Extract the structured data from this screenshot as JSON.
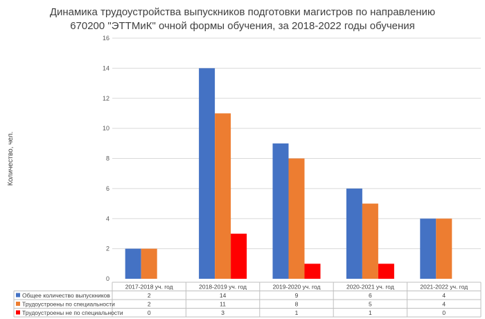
{
  "chart_data": {
    "type": "bar",
    "title_line1": "Динамика трудоустройства выпускников подготовки магистров по направлению",
    "title_line2": "670200 \"ЭТТМиК\" очной формы обучения, за 2018-2022 годы обучения",
    "xlabel": "",
    "ylabel": "Количество, чел.",
    "ylim": [
      0,
      16
    ],
    "yticks": [
      "0",
      "2",
      "4",
      "6",
      "8",
      "10",
      "12",
      "14",
      "16"
    ],
    "grid": true,
    "legend": "data-table",
    "categories": [
      "2017-2018 уч. год",
      "2018-2019 уч. год",
      "2019-2020 уч. год",
      "2020-2021 уч. год",
      "2021-2022 уч. год"
    ],
    "series": [
      {
        "name": "Общее количество выпускников",
        "color": "#4472c4",
        "values": [
          2,
          14,
          9,
          6,
          4
        ]
      },
      {
        "name": "Трудоустроены по специальности",
        "color": "#ed7d31",
        "values": [
          2,
          11,
          8,
          5,
          4
        ]
      },
      {
        "name": "Трудоустроены не по специальности",
        "color": "#ff0000",
        "values": [
          0,
          3,
          1,
          1,
          0
        ]
      }
    ]
  }
}
